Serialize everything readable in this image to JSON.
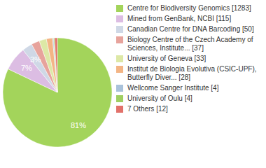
{
  "chart_data": {
    "type": "pie",
    "categories": [
      "Centre for Biodiversity Genomics [1283]",
      "Mined from GenBank, NCBI [115]",
      "Canadian Centre for DNA Barcoding [50]",
      "Biology Centre of the Czech Academy of Sciences, Institute... [37]",
      "University of Geneva [33]",
      "Institut de Biologia Evolutiva (CSIC-UPF), Butterfly Diver... [28]",
      "Wellcome Sanger Institute [4]",
      "University of Oulu [4]",
      "7 Others [12]"
    ],
    "values": [
      81,
      7,
      3,
      2.4,
      2.1,
      1.8,
      0.3,
      0.3,
      0.8
    ],
    "value_labels": [
      "81%",
      "7%",
      "3%",
      null,
      null,
      null,
      null,
      null,
      null
    ],
    "data_labels": true,
    "legend": "right",
    "colors": [
      "#a3d45b",
      "#dcbde3",
      "#cfd8e6",
      "#e7a39c",
      "#dde8a6",
      "#f3b585",
      "#a9c2da",
      "#9fcf62",
      "#e2716a"
    ]
  }
}
